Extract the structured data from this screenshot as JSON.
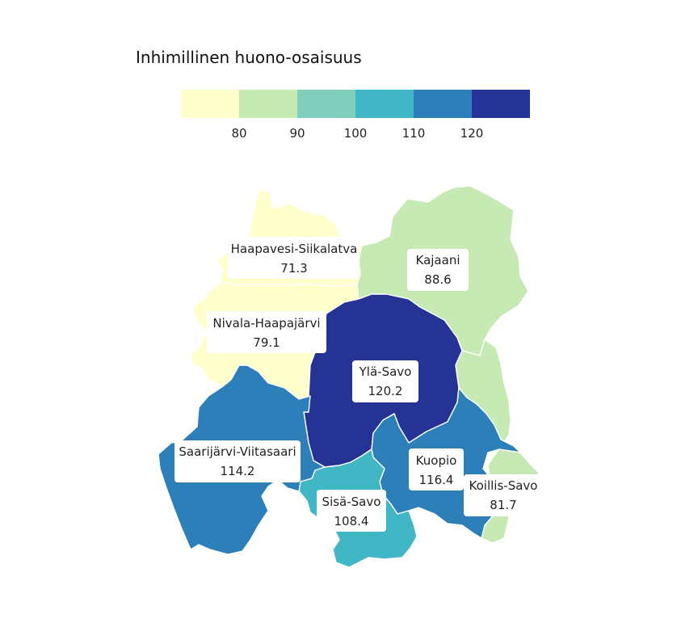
{
  "title": "Inhimillinen huono-osaisuus",
  "legend": {
    "bins": [
      {
        "color": "#ffffcc"
      },
      {
        "color": "#c7e9b4"
      },
      {
        "color": "#7fcdbb"
      },
      {
        "color": "#41b6c4"
      },
      {
        "color": "#2c7fb8"
      },
      {
        "color": "#253494"
      }
    ],
    "tick_labels": [
      "80",
      "90",
      "100",
      "110",
      "120"
    ]
  },
  "regions": [
    {
      "id": "haapavesi-siikalatva",
      "name": "Haapavesi-Siikalatva",
      "value": "71.3",
      "color": "#ffffcc"
    },
    {
      "id": "nivala-haapajarvi",
      "name": "Nivala-Haapajärvi",
      "value": "79.1",
      "color": "#ffffcc"
    },
    {
      "id": "kajaani",
      "name": "Kajaani",
      "value": "88.6",
      "color": "#c7e9b4"
    },
    {
      "id": "yla-savo",
      "name": "Ylä-Savo",
      "value": "120.2",
      "color": "#253494"
    },
    {
      "id": "saarijarvi-viitasaari",
      "name": "Saarijärvi-Viitasaari",
      "value": "114.2",
      "color": "#2c7fb8"
    },
    {
      "id": "kuopio",
      "name": "Kuopio",
      "value": "116.4",
      "color": "#2c7fb8"
    },
    {
      "id": "sisa-savo",
      "name": "Sisä-Savo",
      "value": "108.4",
      "color": "#41b6c4"
    },
    {
      "id": "koillis-savo",
      "name": "Koillis-Savo",
      "value": "81.7",
      "color": "#c7e9b4"
    }
  ]
}
